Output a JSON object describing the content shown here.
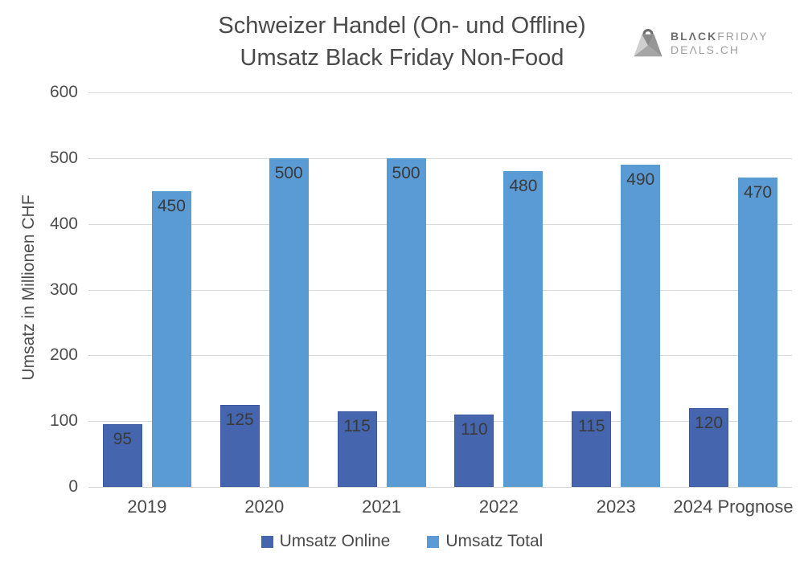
{
  "header": {
    "title_line1": "Schweizer Handel (On- und Offline)",
    "title_line2": "Umsatz Black Friday Non-Food"
  },
  "logo": {
    "icon": "shopping-bag-icon",
    "word_black": "BLΛCK",
    "word_friday": "FRIDΛY",
    "word_deals": "DEΛLS.CH"
  },
  "chart_data": {
    "type": "bar",
    "title": "Schweizer Handel (On- und Offline) Umsatz Black Friday Non-Food",
    "categories": [
      "2019",
      "2020",
      "2021",
      "2022",
      "2023",
      "2024 Prognose"
    ],
    "series": [
      {
        "key": "umsatz-online",
        "name": "Umsatz Online",
        "color": "#4565AE",
        "border": "#3B57A1",
        "values": [
          95,
          125,
          115,
          110,
          115,
          120
        ]
      },
      {
        "key": "umsatz-total",
        "name": "Umsatz Total",
        "color": "#5B9BD5",
        "border": "#549BCE",
        "values": [
          450,
          500,
          500,
          480,
          490,
          470
        ]
      }
    ],
    "xlabel": "",
    "ylabel": "Umsatz in Millionen CHF",
    "ylim": [
      0,
      600
    ],
    "ytick_step": 100,
    "grid": true,
    "grid_color": "#d9d9d9",
    "legend_position": "bottom",
    "data_labels": true,
    "label_color": "#3a3a3a"
  }
}
